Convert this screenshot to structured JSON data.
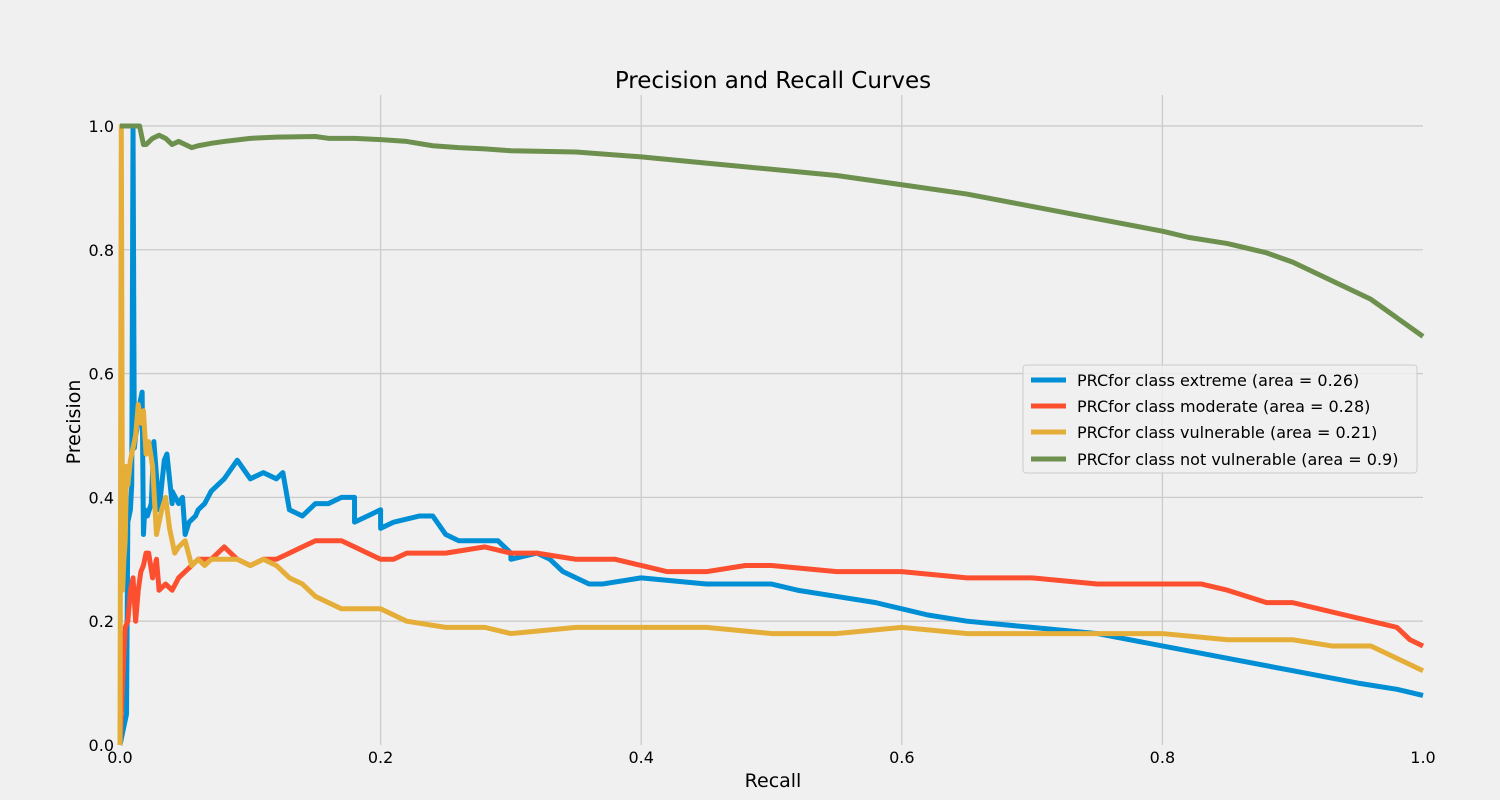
{
  "chart_data": {
    "type": "line",
    "title": "Precision and Recall Curves",
    "xlabel": "Recall",
    "ylabel": "Precision",
    "xlim": [
      0.0,
      1.0
    ],
    "ylim": [
      0.0,
      1.05
    ],
    "x_ticks": [
      0.0,
      0.2,
      0.4,
      0.6,
      0.8,
      1.0
    ],
    "y_ticks": [
      0.0,
      0.2,
      0.4,
      0.6,
      0.8,
      1.0
    ],
    "x_tick_labels": [
      "0.0",
      "0.2",
      "0.4",
      "0.6",
      "0.8",
      "1.0"
    ],
    "y_tick_labels": [
      "0.0",
      "0.2",
      "0.4",
      "0.6",
      "0.8",
      "1.0"
    ],
    "grid": true,
    "legend_position": "center-right",
    "series": [
      {
        "name": "PRCfor class extreme (area = 0.26)",
        "color": "#008fd5",
        "x": [
          0.0,
          0.005,
          0.006,
          0.008,
          0.009,
          0.01,
          0.011,
          0.012,
          0.013,
          0.015,
          0.017,
          0.018,
          0.019,
          0.021,
          0.024,
          0.026,
          0.03,
          0.032,
          0.034,
          0.036,
          0.04,
          0.04,
          0.045,
          0.048,
          0.05,
          0.053,
          0.058,
          0.06,
          0.065,
          0.07,
          0.08,
          0.09,
          0.1,
          0.11,
          0.12,
          0.125,
          0.13,
          0.14,
          0.15,
          0.16,
          0.17,
          0.18,
          0.18,
          0.19,
          0.2,
          0.2,
          0.21,
          0.23,
          0.24,
          0.25,
          0.26,
          0.29,
          0.3,
          0.3,
          0.32,
          0.33,
          0.34,
          0.36,
          0.37,
          0.4,
          0.45,
          0.5,
          0.52,
          0.55,
          0.58,
          0.6,
          0.62,
          0.65,
          0.7,
          0.75,
          0.8,
          0.85,
          0.9,
          0.95,
          0.98,
          1.0
        ],
        "y": [
          0.0,
          0.05,
          0.36,
          0.38,
          0.42,
          1.0,
          0.48,
          0.5,
          0.51,
          0.55,
          0.57,
          0.34,
          0.38,
          0.37,
          0.39,
          0.49,
          0.38,
          0.42,
          0.46,
          0.47,
          0.39,
          0.41,
          0.39,
          0.4,
          0.34,
          0.36,
          0.37,
          0.38,
          0.39,
          0.41,
          0.43,
          0.46,
          0.43,
          0.44,
          0.43,
          0.44,
          0.38,
          0.37,
          0.39,
          0.39,
          0.4,
          0.4,
          0.36,
          0.37,
          0.38,
          0.35,
          0.36,
          0.37,
          0.37,
          0.34,
          0.33,
          0.33,
          0.31,
          0.3,
          0.31,
          0.3,
          0.28,
          0.26,
          0.26,
          0.27,
          0.26,
          0.26,
          0.25,
          0.24,
          0.23,
          0.22,
          0.21,
          0.2,
          0.19,
          0.18,
          0.16,
          0.14,
          0.12,
          0.1,
          0.09,
          0.08
        ]
      },
      {
        "name": "PRCfor class moderate (area = 0.28)",
        "color": "#fc4f30",
        "x": [
          0.0,
          0.002,
          0.004,
          0.006,
          0.008,
          0.01,
          0.012,
          0.014,
          0.016,
          0.018,
          0.02,
          0.022,
          0.025,
          0.028,
          0.03,
          0.035,
          0.04,
          0.045,
          0.05,
          0.06,
          0.07,
          0.08,
          0.09,
          0.1,
          0.11,
          0.12,
          0.13,
          0.14,
          0.15,
          0.16,
          0.17,
          0.18,
          0.19,
          0.2,
          0.21,
          0.22,
          0.25,
          0.28,
          0.3,
          0.32,
          0.35,
          0.38,
          0.4,
          0.42,
          0.45,
          0.48,
          0.5,
          0.55,
          0.6,
          0.65,
          0.7,
          0.75,
          0.8,
          0.83,
          0.85,
          0.88,
          0.9,
          0.92,
          0.94,
          0.96,
          0.98,
          0.99,
          1.0
        ],
        "y": [
          0.0,
          0.1,
          0.19,
          0.2,
          0.25,
          0.27,
          0.2,
          0.25,
          0.28,
          0.29,
          0.31,
          0.31,
          0.27,
          0.3,
          0.25,
          0.26,
          0.25,
          0.27,
          0.28,
          0.3,
          0.3,
          0.32,
          0.3,
          0.29,
          0.3,
          0.3,
          0.31,
          0.32,
          0.33,
          0.33,
          0.33,
          0.32,
          0.31,
          0.3,
          0.3,
          0.31,
          0.31,
          0.32,
          0.31,
          0.31,
          0.3,
          0.3,
          0.29,
          0.28,
          0.28,
          0.29,
          0.29,
          0.28,
          0.28,
          0.27,
          0.27,
          0.26,
          0.26,
          0.26,
          0.25,
          0.23,
          0.23,
          0.22,
          0.21,
          0.2,
          0.19,
          0.17,
          0.16
        ]
      },
      {
        "name": "PRCfor class vulnerable (area = 0.21)",
        "color": "#e5ae38",
        "x": [
          0.0,
          0.001,
          0.002,
          0.003,
          0.004,
          0.005,
          0.006,
          0.007,
          0.008,
          0.01,
          0.012,
          0.014,
          0.016,
          0.018,
          0.02,
          0.022,
          0.025,
          0.028,
          0.03,
          0.032,
          0.035,
          0.038,
          0.04,
          0.042,
          0.045,
          0.05,
          0.055,
          0.06,
          0.065,
          0.07,
          0.08,
          0.09,
          0.1,
          0.11,
          0.12,
          0.13,
          0.14,
          0.15,
          0.16,
          0.17,
          0.18,
          0.2,
          0.22,
          0.25,
          0.28,
          0.3,
          0.35,
          0.4,
          0.45,
          0.5,
          0.55,
          0.6,
          0.65,
          0.7,
          0.75,
          0.8,
          0.85,
          0.9,
          0.93,
          0.96,
          0.98,
          1.0
        ],
        "y": [
          0.0,
          1.0,
          0.25,
          0.3,
          0.33,
          0.45,
          0.42,
          0.44,
          0.46,
          0.48,
          0.5,
          0.55,
          0.52,
          0.54,
          0.47,
          0.49,
          0.45,
          0.34,
          0.36,
          0.38,
          0.4,
          0.35,
          0.33,
          0.31,
          0.32,
          0.33,
          0.29,
          0.3,
          0.29,
          0.3,
          0.3,
          0.3,
          0.29,
          0.3,
          0.29,
          0.27,
          0.26,
          0.24,
          0.23,
          0.22,
          0.22,
          0.22,
          0.2,
          0.19,
          0.19,
          0.18,
          0.19,
          0.19,
          0.19,
          0.18,
          0.18,
          0.19,
          0.18,
          0.18,
          0.18,
          0.18,
          0.17,
          0.17,
          0.16,
          0.16,
          0.14,
          0.12
        ]
      },
      {
        "name": "PRCfor class not vulnerable (area = 0.9)",
        "color": "#6d904f",
        "x": [
          0.0,
          0.005,
          0.01,
          0.015,
          0.018,
          0.02,
          0.025,
          0.03,
          0.035,
          0.04,
          0.045,
          0.05,
          0.055,
          0.06,
          0.065,
          0.07,
          0.08,
          0.1,
          0.12,
          0.15,
          0.16,
          0.18,
          0.2,
          0.22,
          0.24,
          0.26,
          0.28,
          0.3,
          0.35,
          0.4,
          0.45,
          0.5,
          0.55,
          0.6,
          0.65,
          0.7,
          0.75,
          0.8,
          0.82,
          0.85,
          0.88,
          0.9,
          0.92,
          0.94,
          0.96,
          0.98,
          1.0
        ],
        "y": [
          1.0,
          1.0,
          1.0,
          1.0,
          0.97,
          0.97,
          0.98,
          0.985,
          0.98,
          0.97,
          0.975,
          0.97,
          0.965,
          0.968,
          0.97,
          0.972,
          0.975,
          0.98,
          0.982,
          0.983,
          0.98,
          0.98,
          0.978,
          0.975,
          0.968,
          0.965,
          0.963,
          0.96,
          0.958,
          0.95,
          0.94,
          0.93,
          0.92,
          0.905,
          0.89,
          0.87,
          0.85,
          0.83,
          0.82,
          0.81,
          0.795,
          0.78,
          0.76,
          0.74,
          0.72,
          0.69,
          0.66
        ]
      }
    ]
  }
}
